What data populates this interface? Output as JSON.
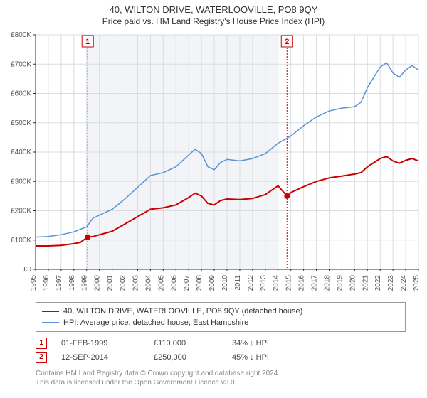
{
  "title": "40, WILTON DRIVE, WATERLOOVILLE, PO8 9QY",
  "subtitle": "Price paid vs. HM Land Registry's House Price Index (HPI)",
  "chart": {
    "type": "line",
    "background_color": "#ffffff",
    "plot_bg_shaded": "#f2f4f7",
    "grid_color": "#d9dde2",
    "axis_color": "#333333",
    "label_fontsize": 10,
    "label_color": "#555555",
    "title_fontsize": 13,
    "ylim": [
      0,
      800
    ],
    "ytick_step": 100,
    "ytick_labels": [
      "£0",
      "£100K",
      "£200K",
      "£300K",
      "£400K",
      "£500K",
      "£600K",
      "£700K",
      "£800K"
    ],
    "x_years": [
      1995,
      1996,
      1997,
      1998,
      1999,
      2000,
      2001,
      2002,
      2003,
      2004,
      2005,
      2006,
      2007,
      2008,
      2009,
      2010,
      2011,
      2012,
      2013,
      2014,
      2015,
      2016,
      2017,
      2018,
      2019,
      2020,
      2021,
      2022,
      2023,
      2024,
      2025
    ],
    "shaded_start_year": 1999,
    "shaded_end_year": 2014,
    "series": [
      {
        "name": "property",
        "label": "40, WILTON DRIVE, WATERLOOVILLE, PO8 9QY (detached house)",
        "color": "#cc0000",
        "line_width": 2,
        "data": [
          [
            1995,
            80
          ],
          [
            1996,
            80
          ],
          [
            1997,
            82
          ],
          [
            1998,
            88
          ],
          [
            1998.5,
            92
          ],
          [
            1999.083,
            110
          ],
          [
            1999.5,
            112
          ],
          [
            2000,
            118
          ],
          [
            2001,
            130
          ],
          [
            2002,
            155
          ],
          [
            2003,
            180
          ],
          [
            2004,
            205
          ],
          [
            2005,
            210
          ],
          [
            2006,
            220
          ],
          [
            2007,
            245
          ],
          [
            2007.5,
            260
          ],
          [
            2008,
            250
          ],
          [
            2008.5,
            225
          ],
          [
            2009,
            220
          ],
          [
            2009.5,
            235
          ],
          [
            2010,
            240
          ],
          [
            2011,
            238
          ],
          [
            2012,
            242
          ],
          [
            2013,
            255
          ],
          [
            2013.5,
            270
          ],
          [
            2014,
            285
          ],
          [
            2014.7,
            250
          ],
          [
            2015,
            262
          ],
          [
            2016,
            282
          ],
          [
            2017,
            300
          ],
          [
            2018,
            312
          ],
          [
            2019,
            318
          ],
          [
            2020,
            325
          ],
          [
            2020.5,
            330
          ],
          [
            2021,
            350
          ],
          [
            2022,
            378
          ],
          [
            2022.5,
            385
          ],
          [
            2023,
            370
          ],
          [
            2023.5,
            362
          ],
          [
            2024,
            372
          ],
          [
            2024.5,
            378
          ],
          [
            2025,
            370
          ]
        ]
      },
      {
        "name": "hpi",
        "label": "HPI: Average price, detached house, East Hampshire",
        "color": "#5b8fd6",
        "line_width": 1.5,
        "data": [
          [
            1995,
            110
          ],
          [
            1996,
            112
          ],
          [
            1997,
            118
          ],
          [
            1998,
            128
          ],
          [
            1999,
            145
          ],
          [
            1999.5,
            175
          ],
          [
            2000,
            185
          ],
          [
            2001,
            205
          ],
          [
            2002,
            240
          ],
          [
            2003,
            280
          ],
          [
            2004,
            320
          ],
          [
            2005,
            330
          ],
          [
            2006,
            350
          ],
          [
            2007,
            390
          ],
          [
            2007.5,
            410
          ],
          [
            2008,
            395
          ],
          [
            2008.5,
            350
          ],
          [
            2009,
            340
          ],
          [
            2009.5,
            365
          ],
          [
            2010,
            375
          ],
          [
            2011,
            370
          ],
          [
            2012,
            378
          ],
          [
            2013,
            395
          ],
          [
            2014,
            430
          ],
          [
            2015,
            455
          ],
          [
            2016,
            490
          ],
          [
            2017,
            520
          ],
          [
            2018,
            540
          ],
          [
            2019,
            550
          ],
          [
            2020,
            555
          ],
          [
            2020.5,
            570
          ],
          [
            2021,
            620
          ],
          [
            2022,
            690
          ],
          [
            2022.5,
            705
          ],
          [
            2023,
            670
          ],
          [
            2023.5,
            655
          ],
          [
            2024,
            680
          ],
          [
            2024.5,
            695
          ],
          [
            2025,
            680
          ]
        ]
      }
    ],
    "markers": [
      {
        "year": 1999.083,
        "value": 110,
        "color": "#cc0000",
        "radius": 4
      },
      {
        "year": 2014.7,
        "value": 250,
        "color": "#cc0000",
        "radius": 4
      }
    ],
    "event_lines": [
      {
        "label": "1",
        "year": 1999.083,
        "color": "#cc0000"
      },
      {
        "label": "2",
        "year": 2014.7,
        "color": "#cc0000"
      }
    ]
  },
  "legend": {
    "s1": "40, WILTON DRIVE, WATERLOOVILLE, PO8 9QY (detached house)",
    "s2": "HPI: Average price, detached house, East Hampshire"
  },
  "events": [
    {
      "badge": "1",
      "date": "01-FEB-1999",
      "price": "£110,000",
      "pct": "34% ↓ HPI"
    },
    {
      "badge": "2",
      "date": "12-SEP-2014",
      "price": "£250,000",
      "pct": "45% ↓ HPI"
    }
  ],
  "footer": {
    "l1": "Contains HM Land Registry data © Crown copyright and database right 2024.",
    "l2": "This data is licensed under the Open Government Licence v3.0."
  }
}
